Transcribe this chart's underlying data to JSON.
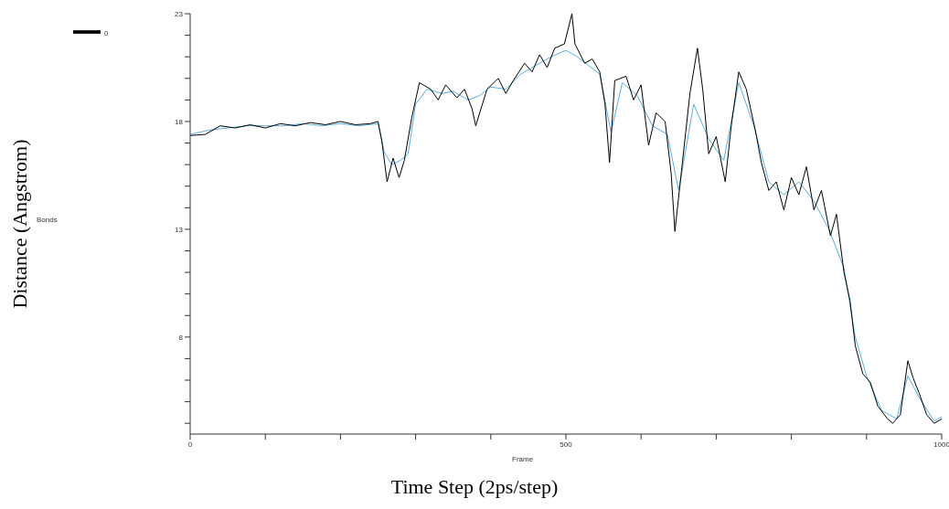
{
  "chart_data": {
    "type": "line",
    "xlabel": "Frame",
    "annotations": [
      "Distance (Angstrom)",
      "Time Step (2ps/step)",
      "Bonds"
    ],
    "xlim": [
      0,
      1000
    ],
    "xticks": [
      0,
      {
        "value": 100,
        "label": null
      },
      {
        "value": 200,
        "label": null
      },
      {
        "value": 300,
        "label": null
      },
      {
        "value": 400,
        "label": null
      },
      500,
      {
        "value": 600,
        "label": null
      },
      {
        "value": 700,
        "label": null
      },
      {
        "value": 800,
        "label": null
      },
      {
        "value": 900,
        "label": null
      },
      1000
    ],
    "ylim": [
      3.5,
      23
    ],
    "yticks": [
      {
        "value": 4,
        "label": null
      },
      {
        "value": 5,
        "label": null
      },
      {
        "value": 6,
        "label": null
      },
      {
        "value": 7,
        "label": null
      },
      8,
      {
        "value": 9,
        "label": null
      },
      {
        "value": 10,
        "label": null
      },
      {
        "value": 11,
        "label": null
      },
      {
        "value": 12,
        "label": null
      },
      13,
      {
        "value": 14,
        "label": null
      },
      {
        "value": 15,
        "label": null
      },
      {
        "value": 16,
        "label": null
      },
      {
        "value": 17,
        "label": null
      },
      18,
      {
        "value": 19,
        "label": null
      },
      {
        "value": 20,
        "label": null
      },
      {
        "value": 21,
        "label": null
      },
      {
        "value": 22,
        "label": null
      },
      23
    ],
    "legend": "top left",
    "marker": "none",
    "line_style": "solid",
    "series": [
      {
        "name": "0",
        "color": "#000000",
        "x": [
          0,
          20,
          40,
          60,
          80,
          100,
          120,
          140,
          160,
          180,
          200,
          220,
          240,
          250,
          255,
          262,
          270,
          278,
          285,
          295,
          305,
          320,
          330,
          340,
          355,
          365,
          375,
          380,
          395,
          410,
          420,
          430,
          445,
          455,
          465,
          475,
          485,
          498,
          508,
          512,
          525,
          535,
          545,
          552,
          558,
          565,
          580,
          590,
          600,
          610,
          620,
          632,
          640,
          645,
          655,
          665,
          675,
          682,
          690,
          700,
          712,
          720,
          730,
          740,
          752,
          760,
          770,
          780,
          790,
          800,
          810,
          820,
          830,
          840,
          852,
          860,
          870,
          878,
          885,
          895,
          905,
          915,
          928,
          935,
          945,
          955,
          962,
          970,
          980,
          990,
          1000
        ],
        "values": [
          17.35,
          17.4,
          17.8,
          17.7,
          17.85,
          17.7,
          17.9,
          17.8,
          17.95,
          17.85,
          18,
          17.85,
          17.9,
          18,
          17.1,
          15.2,
          16.3,
          15.4,
          16.2,
          18.2,
          19.8,
          19.5,
          19,
          19.7,
          19.1,
          19.5,
          18.6,
          17.8,
          19.5,
          20,
          19.3,
          19.9,
          20.7,
          20.3,
          21.1,
          20.5,
          21.4,
          21.6,
          23,
          21.6,
          20.7,
          20.9,
          20.3,
          18.8,
          16.1,
          19.9,
          20.1,
          19,
          19.7,
          16.9,
          18.4,
          18,
          15.6,
          12.9,
          16.1,
          19.3,
          21.4,
          19.5,
          16.5,
          17.3,
          15.2,
          17.8,
          20.3,
          19.5,
          17.6,
          16.1,
          14.8,
          15.2,
          13.9,
          15.4,
          14.6,
          15.9,
          13.9,
          14.8,
          12.7,
          13.7,
          11,
          9.7,
          7.6,
          6.3,
          5.9,
          4.8,
          4.2,
          4,
          4.4,
          6.9,
          6.1,
          5.4,
          4.4,
          4,
          4.2
        ]
      },
      {
        "color": "#5aaedc",
        "x": [
          0,
          25,
          50,
          75,
          100,
          125,
          150,
          175,
          200,
          225,
          250,
          258,
          268,
          280,
          290,
          300,
          315,
          335,
          350,
          370,
          385,
          400,
          420,
          440,
          460,
          480,
          500,
          515,
          530,
          545,
          560,
          575,
          595,
          615,
          635,
          650,
          670,
          690,
          710,
          730,
          750,
          770,
          790,
          810,
          830,
          850,
          870,
          885,
          900,
          920,
          940,
          955,
          970,
          990,
          1000
        ],
        "values": [
          17.4,
          17.6,
          17.7,
          17.8,
          17.8,
          17.8,
          17.9,
          17.8,
          17.9,
          17.8,
          17.9,
          16.6,
          16,
          16.2,
          16.5,
          18.8,
          19.5,
          19.3,
          19.4,
          19,
          19.2,
          19.6,
          19.5,
          20.2,
          20.6,
          21,
          21.3,
          21,
          20.6,
          20.2,
          17.5,
          19.8,
          19.2,
          17.8,
          17.4,
          14.8,
          18.8,
          17.2,
          16.2,
          19.8,
          17.8,
          15.2,
          14.6,
          15.2,
          14.3,
          13,
          11.2,
          8,
          6.2,
          4.6,
          4.2,
          6.2,
          5.2,
          4.1,
          4.3
        ]
      }
    ]
  }
}
